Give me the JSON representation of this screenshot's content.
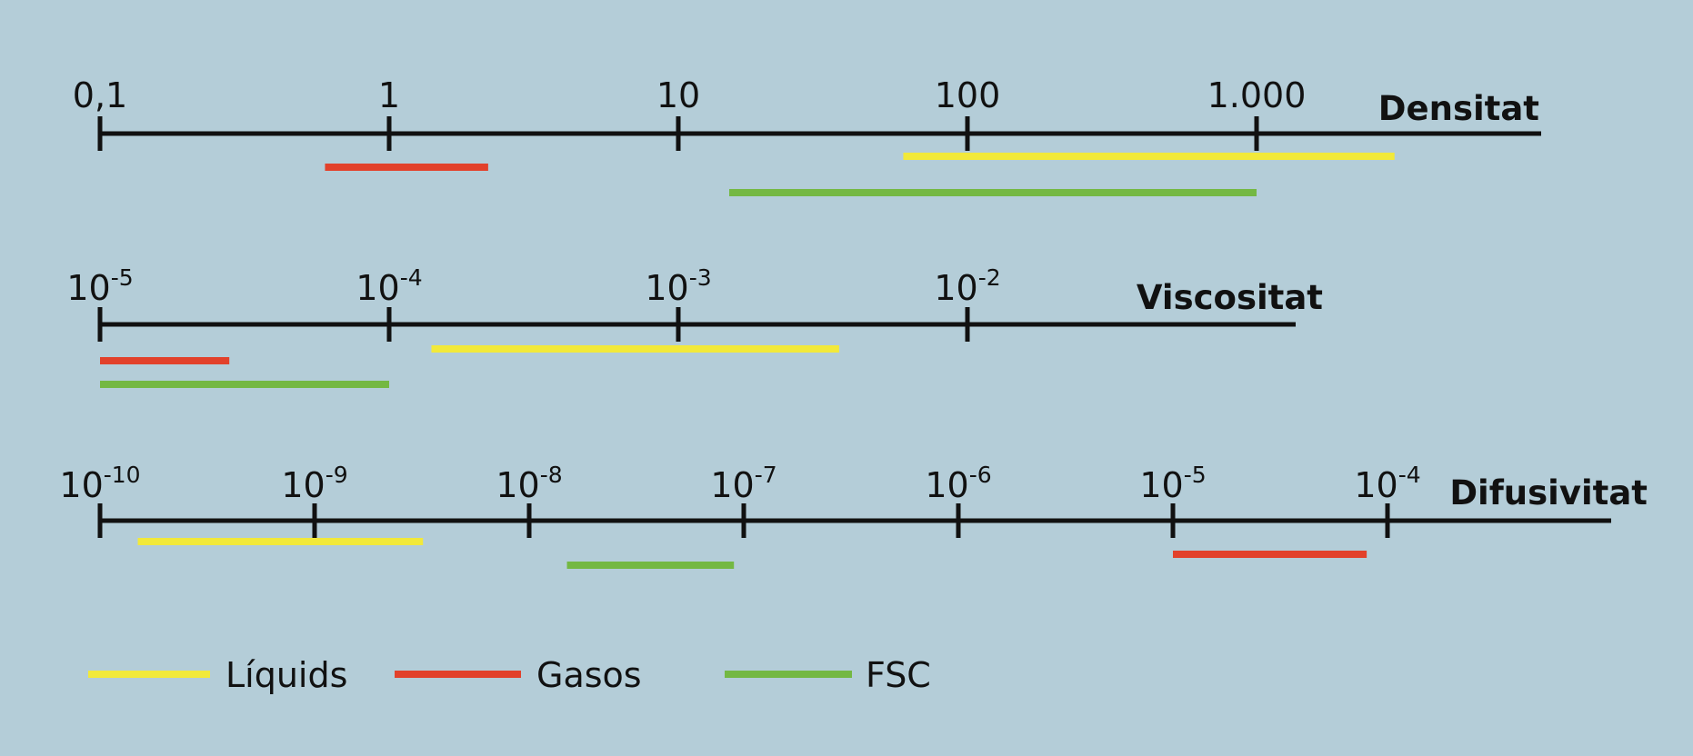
{
  "colors": {
    "background": "#b4cdd8",
    "liquids": "#f2e93a",
    "gases": "#e2412b",
    "fsc": "#74b843",
    "axis": "#111111"
  },
  "chart_data": [
    {
      "type": "range-bar",
      "axis_name": "Densitat",
      "scale": "log10",
      "tick_labels": [
        {
          "base": "0,1",
          "exp": ""
        },
        {
          "base": "1",
          "exp": ""
        },
        {
          "base": "10",
          "exp": ""
        },
        {
          "base": "100",
          "exp": ""
        },
        {
          "base": "1.000",
          "exp": ""
        }
      ],
      "tick_values": [
        0.1,
        1,
        10,
        100,
        1000
      ],
      "axis_range": [
        0.1,
        16000
      ],
      "series": [
        {
          "name": "Gasos",
          "range": [
            0.6,
            2.2
          ]
        },
        {
          "name": "Líquids",
          "range": [
            60,
            3000
          ]
        },
        {
          "name": "FSC",
          "range": [
            15,
            1000
          ]
        }
      ]
    },
    {
      "type": "range-bar",
      "axis_name": "Viscositat",
      "scale": "log10",
      "tick_labels": [
        {
          "base": "10",
          "exp": "-5"
        },
        {
          "base": "10",
          "exp": "-4"
        },
        {
          "base": "10",
          "exp": "-3"
        },
        {
          "base": "10",
          "exp": "-2"
        }
      ],
      "tick_values": [
        1e-05,
        0.0001,
        0.001,
        0.01
      ],
      "axis_range": [
        1e-05,
        0.11
      ],
      "series": [
        {
          "name": "Gasos",
          "range": [
            1e-05,
            2.8e-05
          ]
        },
        {
          "name": "Líquids",
          "range": [
            0.00014,
            0.0036
          ]
        },
        {
          "name": "FSC",
          "range": [
            1e-05,
            0.0001
          ]
        }
      ]
    },
    {
      "type": "range-bar",
      "axis_name": "Difusivitat",
      "scale": "log10",
      "tick_labels": [
        {
          "base": "10",
          "exp": "-10"
        },
        {
          "base": "10",
          "exp": "-9"
        },
        {
          "base": "10",
          "exp": "-8"
        },
        {
          "base": "10",
          "exp": "-7"
        },
        {
          "base": "10",
          "exp": "-6"
        },
        {
          "base": "10",
          "exp": "-5"
        },
        {
          "base": "10",
          "exp": "-4"
        }
      ],
      "tick_values": [
        1e-10,
        1e-09,
        1e-08,
        1e-07,
        1e-06,
        1e-05,
        0.0001
      ],
      "axis_range": [
        1e-10,
        0.00125
      ],
      "series": [
        {
          "name": "Líquids",
          "range": [
            1.5e-10,
            3.2e-09
          ]
        },
        {
          "name": "FSC",
          "range": [
            1.5e-08,
            9e-08
          ]
        },
        {
          "name": "Gasos",
          "range": [
            1e-05,
            8e-05
          ]
        }
      ]
    }
  ],
  "legend": {
    "placement": "bottom-left",
    "items": [
      {
        "label": "Líquids",
        "key": "liquids"
      },
      {
        "label": "Gasos",
        "key": "gases"
      },
      {
        "label": "FSC",
        "key": "fsc"
      }
    ]
  }
}
